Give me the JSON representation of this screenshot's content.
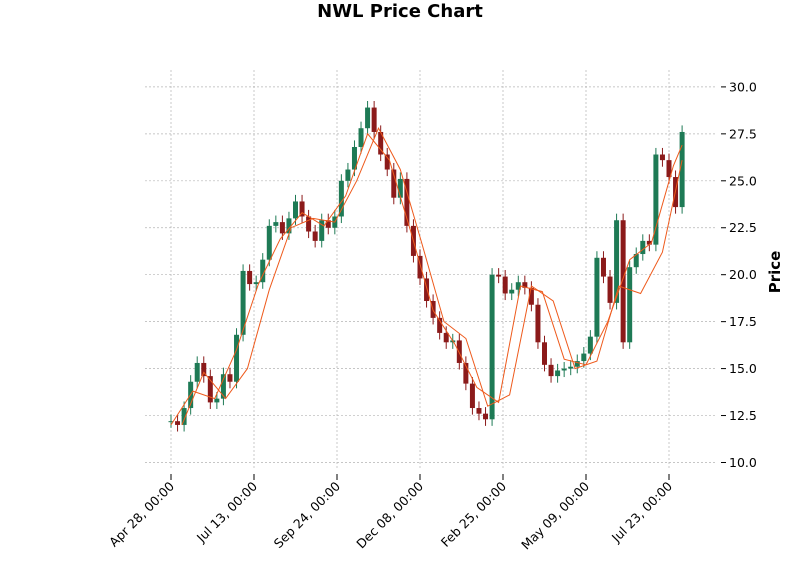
{
  "chart_data": {
    "type": "candlestick",
    "title": "NWL Price Chart",
    "xlabel": "",
    "ylabel": "Price",
    "ylim": [
      9.6,
      30.9
    ],
    "grid": true,
    "y_ticks": [
      10.0,
      12.5,
      15.0,
      17.5,
      20.0,
      22.5,
      25.0,
      27.5,
      30.0
    ],
    "y_tick_labels": [
      "10.0",
      "12.5",
      "15.0",
      "17.5",
      "20.0",
      "22.5",
      "25.0",
      "27.5",
      "30.0"
    ],
    "x_ticks": [
      0,
      76,
      152,
      228,
      304,
      380,
      456
    ],
    "x_tick_labels": [
      "Apr 28, 00:00",
      "Jul 13, 00:00",
      "Sep 24, 00:00",
      "Dec 08, 00:00",
      "Feb 25, 00:00",
      "May 09, 00:00",
      "Jul 23, 00:00"
    ],
    "colors": {
      "up": "#1e7a55",
      "down": "#8b1a1a",
      "ma": "#ee5a1c",
      "grid": "#b4b4b4"
    },
    "series": [
      {
        "kind": "ohlc",
        "x": [
          0,
          6,
          12,
          18,
          24,
          30,
          36,
          42,
          48,
          54,
          60,
          66,
          72,
          78,
          84,
          90,
          96,
          102,
          108,
          114,
          120,
          126,
          132,
          138,
          144,
          150,
          156,
          162,
          168,
          174,
          180,
          186,
          192,
          198,
          204,
          210,
          216,
          222,
          228,
          234,
          240,
          246,
          252,
          258,
          264,
          270,
          276,
          282,
          288,
          294,
          300,
          306,
          312,
          318,
          324,
          330,
          336,
          342,
          348,
          354,
          360,
          366,
          372,
          378,
          384,
          390,
          396,
          402,
          408,
          414,
          420,
          426,
          432,
          438,
          444,
          450,
          456,
          462,
          468
        ],
        "close": [
          12.2,
          12.0,
          12.9,
          14.3,
          15.3,
          14.6,
          13.2,
          13.4,
          14.7,
          14.3,
          16.8,
          20.2,
          19.5,
          19.6,
          20.8,
          22.6,
          22.8,
          22.2,
          23.0,
          23.9,
          23.1,
          22.3,
          21.8,
          22.9,
          22.5,
          23.1,
          25.0,
          25.6,
          26.8,
          27.8,
          28.9,
          27.6,
          26.4,
          25.6,
          24.1,
          25.1,
          22.6,
          21.0,
          19.8,
          18.6,
          17.7,
          16.9,
          16.4,
          16.5,
          15.3,
          14.2,
          12.9,
          12.6,
          12.3,
          20.0,
          19.9,
          19.0,
          19.2,
          19.6,
          19.3,
          18.4,
          16.4,
          15.2,
          14.6,
          14.9,
          15.0,
          15.1,
          15.4,
          15.8,
          16.7,
          20.9,
          19.9,
          18.5,
          22.9,
          16.4,
          20.4,
          21.1,
          21.8,
          21.6,
          26.4,
          26.1,
          25.2,
          23.6,
          27.6
        ]
      },
      {
        "kind": "ma",
        "name": "",
        "x": [
          0,
          20,
          40,
          60,
          80,
          100,
          120,
          140,
          160,
          180,
          200,
          220,
          240,
          260,
          280,
          300,
          320,
          340,
          360,
          380,
          400,
          420,
          440,
          460,
          468
        ],
        "y": [
          12.0,
          13.8,
          13.4,
          16.0,
          19.5,
          21.9,
          23.3,
          22.6,
          24.2,
          27.5,
          26.1,
          22.2,
          18.1,
          16.3,
          14.0,
          13.2,
          19.4,
          19.1,
          15.5,
          15.2,
          17.5,
          20.8,
          21.7,
          25.8,
          26.9
        ]
      },
      {
        "kind": "ma",
        "name": "",
        "x": [
          10,
          30,
          50,
          70,
          90,
          110,
          130,
          150,
          170,
          190,
          210,
          230,
          250,
          270,
          290,
          310,
          330,
          350,
          370,
          390,
          410,
          430,
          450,
          468
        ],
        "y": [
          12.0,
          14.8,
          13.4,
          15.0,
          19.2,
          22.5,
          23.0,
          22.8,
          25.0,
          27.8,
          25.6,
          21.6,
          17.5,
          16.6,
          13.0,
          13.6,
          19.4,
          18.6,
          15.0,
          15.4,
          19.4,
          19.0,
          21.2,
          26.1
        ]
      }
    ]
  }
}
